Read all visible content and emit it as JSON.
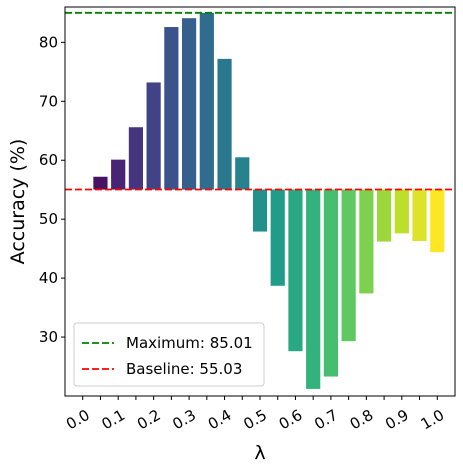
{
  "chart_data": {
    "type": "bar",
    "title": "",
    "xlabel": "λ",
    "ylabel": "Accuracy (%)",
    "x": [
      0.0,
      0.05,
      0.1,
      0.15,
      0.2,
      0.25,
      0.3,
      0.35,
      0.4,
      0.45,
      0.5,
      0.55,
      0.6,
      0.65,
      0.7,
      0.75,
      0.8,
      0.85,
      0.9,
      0.95,
      1.0
    ],
    "values": [
      55.03,
      57.2,
      60.1,
      65.6,
      73.2,
      82.6,
      84.1,
      85.01,
      77.2,
      60.5,
      47.9,
      38.7,
      27.6,
      21.2,
      23.3,
      29.3,
      37.4,
      46.2,
      47.6,
      46.3,
      44.4
    ],
    "bar_base": 55.03,
    "xticks": [
      "0.0",
      "0.1",
      "0.2",
      "0.3",
      "0.4",
      "0.5",
      "0.6",
      "0.7",
      "0.8",
      "0.9",
      "1.0"
    ],
    "yticks": [
      30,
      40,
      50,
      60,
      70,
      80
    ],
    "ylim": [
      20,
      86
    ],
    "colormap": [
      "#440154",
      "#482878",
      "#3e4a89",
      "#31688e",
      "#26828e",
      "#1f9e89",
      "#35b779",
      "#6ece58",
      "#b5de2b",
      "#fde725"
    ],
    "reference_lines": [
      {
        "label": "Maximum: 85.01",
        "value": 85.01,
        "color": "#008000",
        "style": "dashed"
      },
      {
        "label": "Baseline: 55.03",
        "value": 55.03,
        "color": "#ff0000",
        "style": "dashed"
      }
    ],
    "legend_position": "lower-left",
    "grid": false
  }
}
